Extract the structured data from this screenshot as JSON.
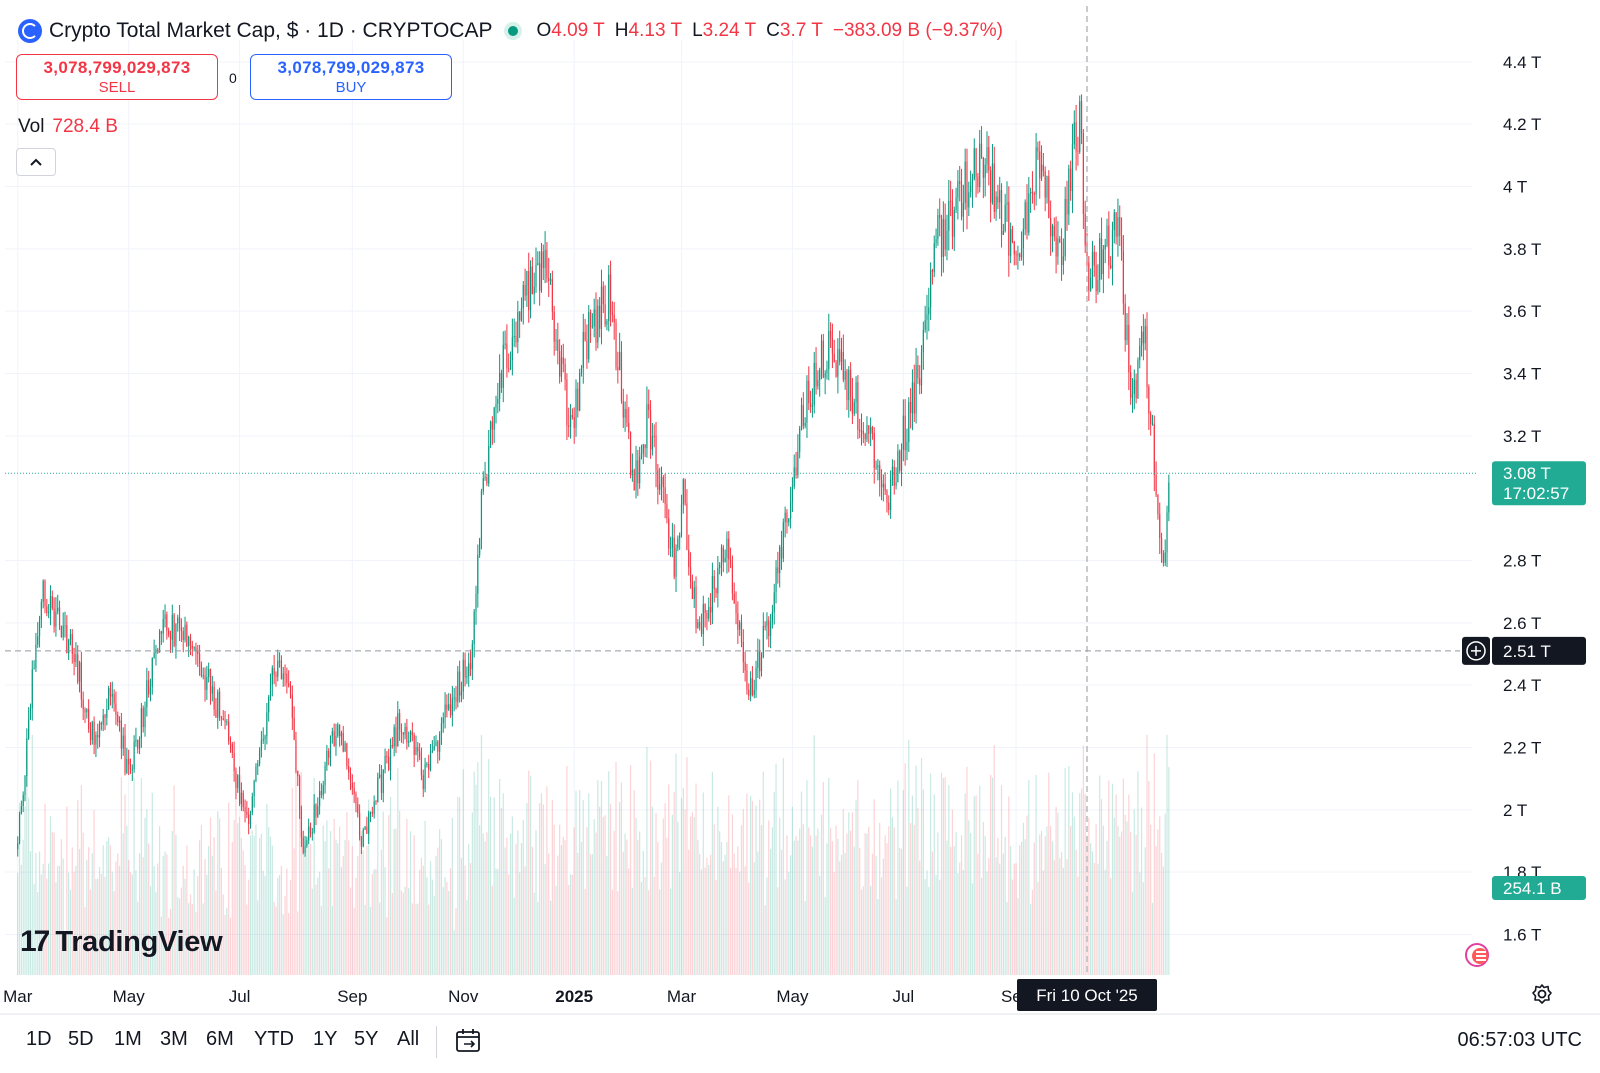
{
  "header": {
    "title": "Crypto Total Market Cap, $ · 1D · CRYPTOCAP",
    "ohlc": [
      {
        "key": "O",
        "value": "4.09 T"
      },
      {
        "key": "H",
        "value": "4.13 T"
      },
      {
        "key": "L",
        "value": "3.24 T"
      },
      {
        "key": "C",
        "value": "3.7 T"
      }
    ],
    "change": "−383.09 B (−9.37%)"
  },
  "trade": {
    "sell_price": "3,078,799,029,873",
    "sell_label": "SELL",
    "spread": "0",
    "buy_price": "3,078,799,029,873",
    "buy_label": "BUY"
  },
  "volume": {
    "label": "Vol",
    "value": "728.4 B"
  },
  "brand": {
    "name": "TradingView"
  },
  "bottom_bar": {
    "ranges": [
      "1D",
      "5D",
      "1M",
      "3M",
      "6M",
      "YTD",
      "1Y",
      "5Y",
      "All"
    ],
    "time": "06:57:03 UTC"
  },
  "chart_data": {
    "type": "candlestick",
    "y_ticks": [
      "4.4 T",
      "4.2 T",
      "4 T",
      "3.8 T",
      "3.6 T",
      "3.4 T",
      "3.2 T",
      "2.8 T",
      "2.6 T",
      "2.4 T",
      "2.2 T",
      "2 T",
      "1.8 T",
      "1.6 T"
    ],
    "x_ticks": [
      "Mar",
      "May",
      "Jul",
      "Sep",
      "Nov",
      "2025",
      "Mar",
      "May",
      "Jul",
      "Sep"
    ],
    "ylim": [
      1.47,
      4.47
    ],
    "last_price_label": "3.08 T",
    "countdown_label": "17:02:57",
    "last_price": 3.08,
    "crosshair_price_label": "2.51 T",
    "crosshair_price": 2.51,
    "crosshair_date_label": "Fri 10 Oct '25",
    "volume_label": "254.1 B",
    "colors": {
      "up": "#089981",
      "down": "#f23645",
      "last": "#22ab94",
      "crosshair": "#131722"
    },
    "anchors": [
      [
        "2024-03-01",
        1.9
      ],
      [
        "2024-03-14",
        2.72
      ],
      [
        "2024-04-01",
        2.5
      ],
      [
        "2024-04-13",
        2.2
      ],
      [
        "2024-04-22",
        2.4
      ],
      [
        "2024-05-01",
        2.1
      ],
      [
        "2024-05-20",
        2.6
      ],
      [
        "2024-06-05",
        2.55
      ],
      [
        "2024-06-24",
        2.25
      ],
      [
        "2024-07-05",
        1.95
      ],
      [
        "2024-07-20",
        2.45
      ],
      [
        "2024-07-29",
        2.4
      ],
      [
        "2024-08-05",
        1.85
      ],
      [
        "2024-08-24",
        2.3
      ],
      [
        "2024-09-06",
        1.9
      ],
      [
        "2024-09-28",
        2.3
      ],
      [
        "2024-10-10",
        2.1
      ],
      [
        "2024-10-29",
        2.4
      ],
      [
        "2024-11-06",
        2.5
      ],
      [
        "2024-11-11",
        3.0
      ],
      [
        "2024-11-22",
        3.4
      ],
      [
        "2024-12-05",
        3.65
      ],
      [
        "2024-12-17",
        3.73
      ],
      [
        "2024-12-30",
        3.2
      ],
      [
        "2025-01-07",
        3.5
      ],
      [
        "2025-01-20",
        3.65
      ],
      [
        "2025-02-03",
        3.05
      ],
      [
        "2025-02-10",
        3.25
      ],
      [
        "2025-02-25",
        2.8
      ],
      [
        "2025-03-02",
        3.0
      ],
      [
        "2025-03-10",
        2.55
      ],
      [
        "2025-03-26",
        2.85
      ],
      [
        "2025-04-07",
        2.35
      ],
      [
        "2025-04-20",
        2.65
      ],
      [
        "2025-05-08",
        3.3
      ],
      [
        "2025-05-22",
        3.5
      ],
      [
        "2025-06-05",
        3.3
      ],
      [
        "2025-06-22",
        3.0
      ],
      [
        "2025-07-10",
        3.4
      ],
      [
        "2025-07-18",
        3.8
      ],
      [
        "2025-08-13",
        4.1
      ],
      [
        "2025-09-01",
        3.8
      ],
      [
        "2025-09-14",
        4.08
      ],
      [
        "2025-09-25",
        3.75
      ],
      [
        "2025-10-06",
        4.25
      ],
      [
        "2025-10-10",
        3.7
      ],
      [
        "2025-10-27",
        3.85
      ],
      [
        "2025-11-04",
        3.3
      ],
      [
        "2025-11-10",
        3.55
      ],
      [
        "2025-11-21",
        2.8
      ],
      [
        "2025-11-24",
        3.05
      ]
    ]
  }
}
